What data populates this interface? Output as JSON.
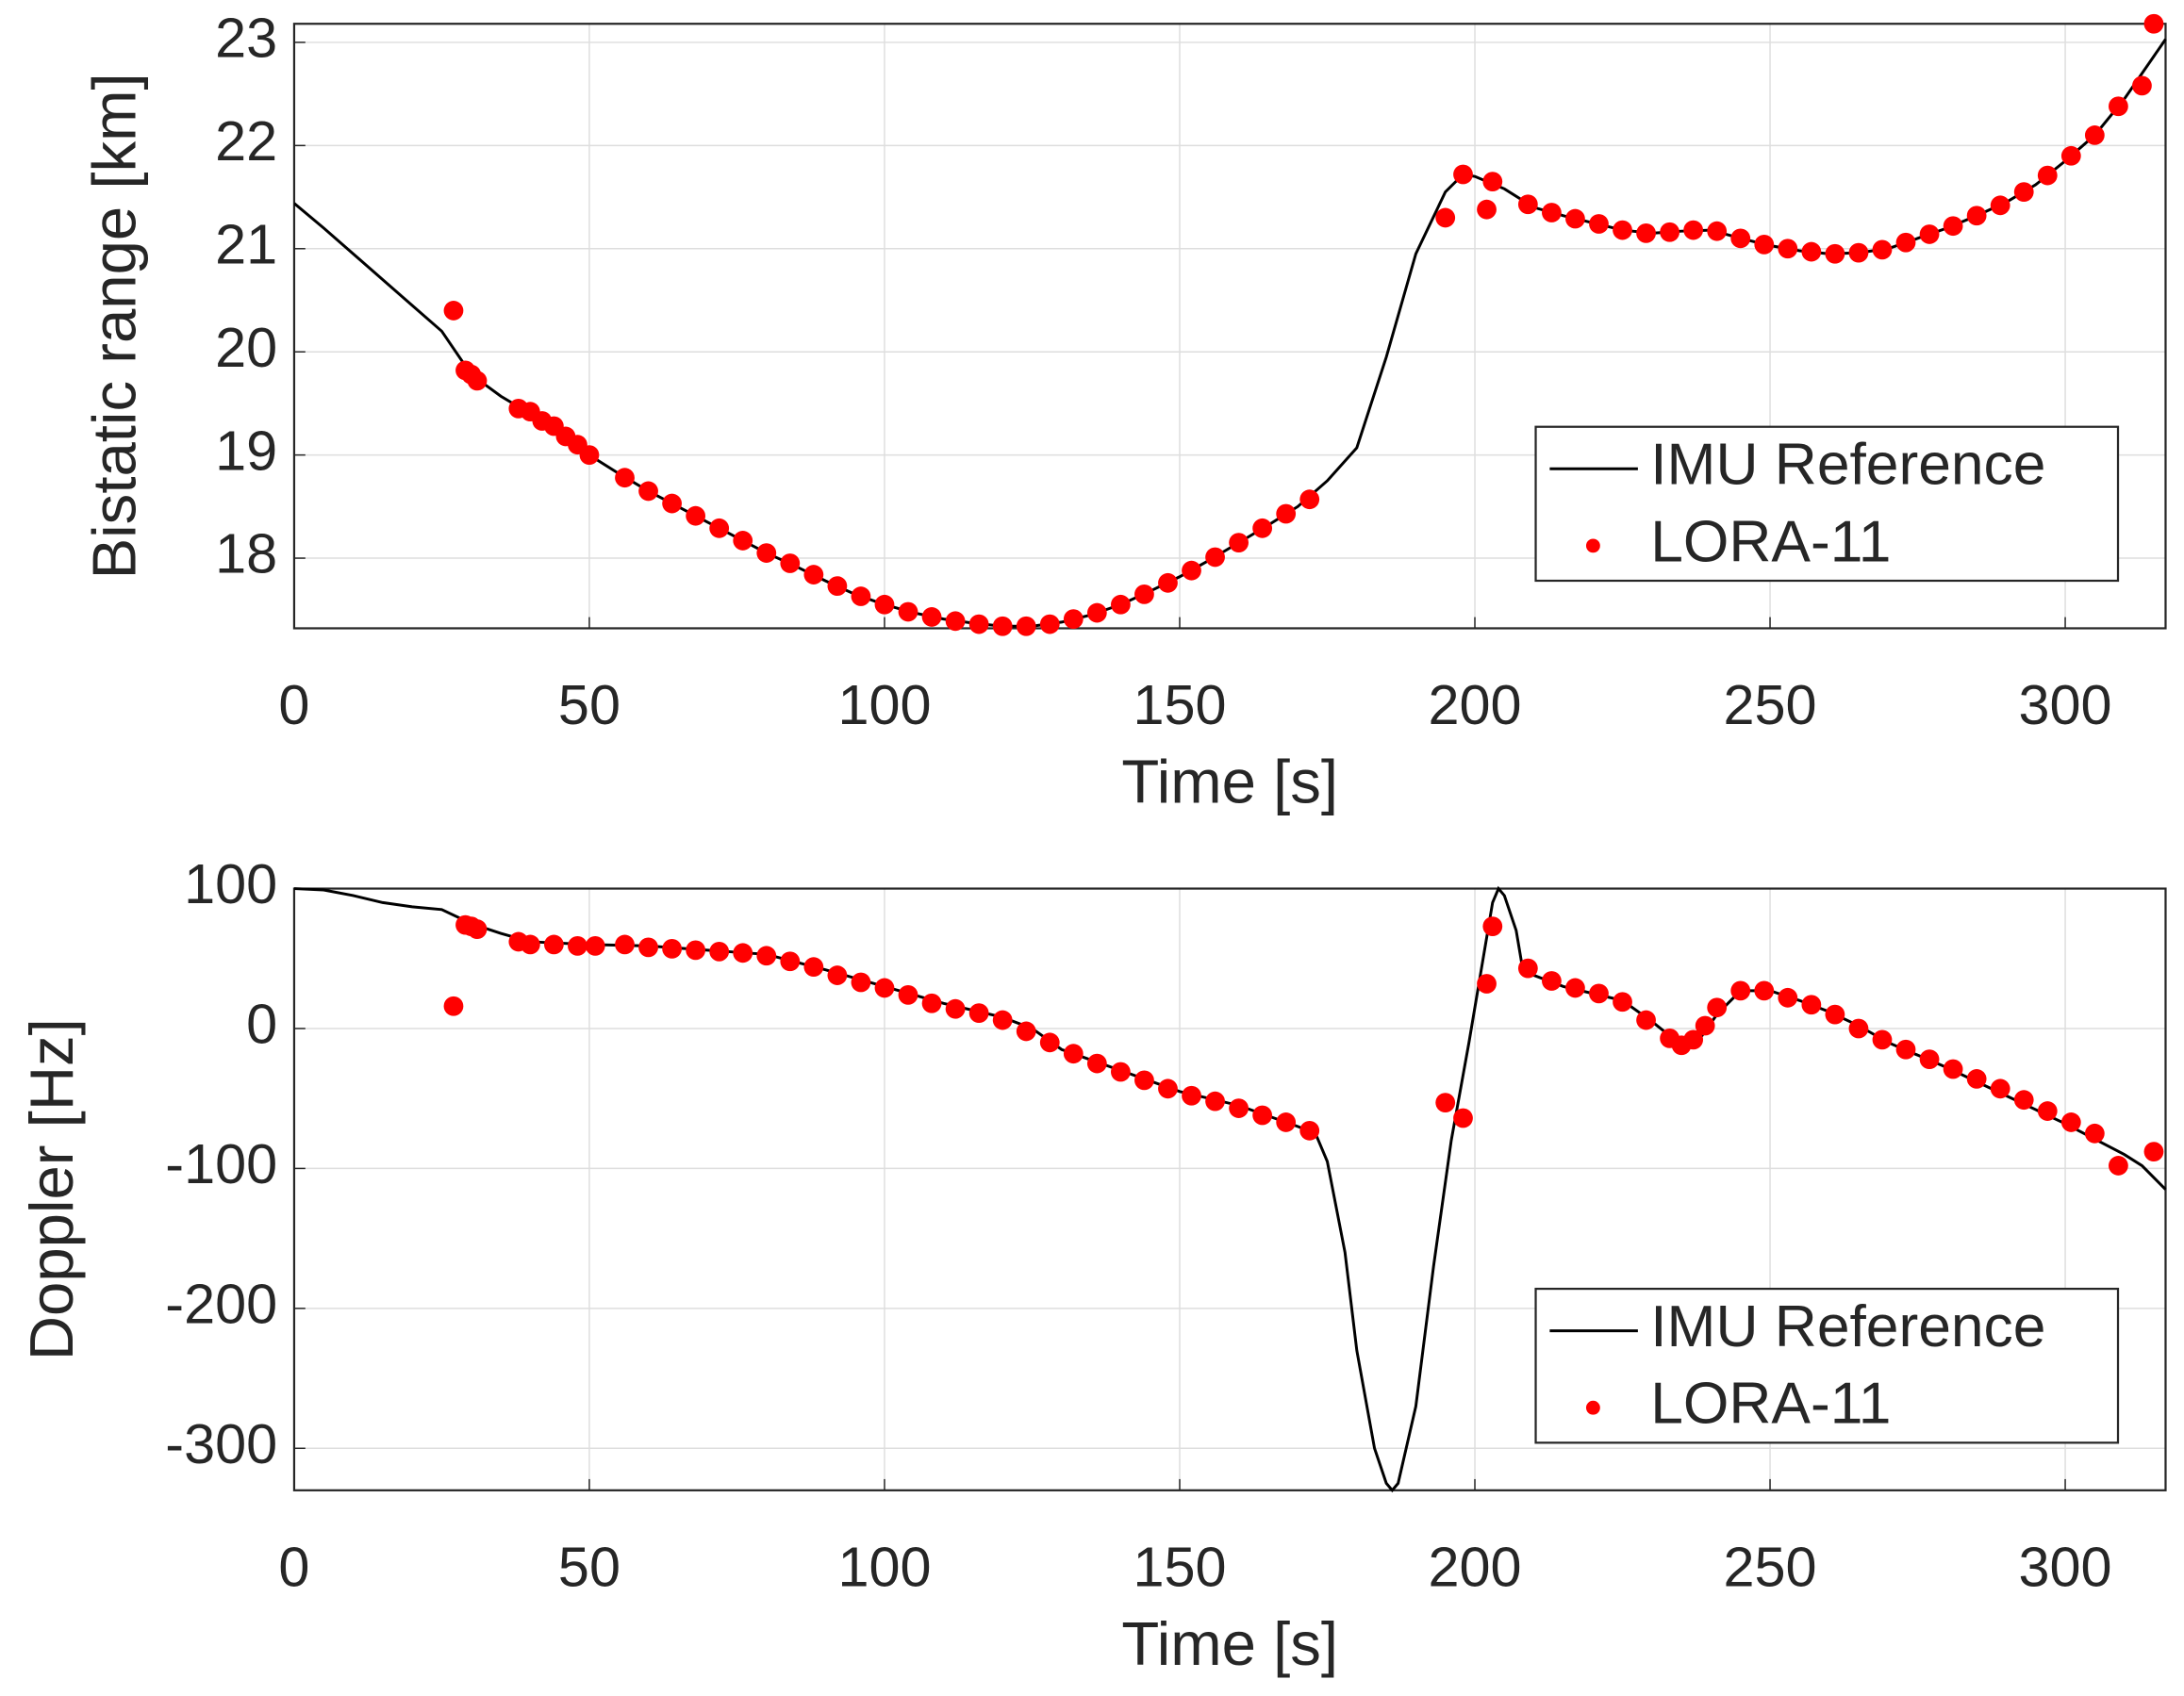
{
  "chart_data": [
    {
      "type": "line",
      "xlabel": "Time [s]",
      "ylabel": "Bistatic range [km]",
      "xlim": [
        0,
        317
      ],
      "ylim": [
        17.32,
        23.18
      ],
      "xticks": [
        0,
        50,
        100,
        150,
        200,
        250,
        300
      ],
      "yticks": [
        18,
        19,
        20,
        21,
        22,
        23
      ],
      "grid": true,
      "legend": "lower right",
      "series": [
        {
          "name": "IMU Reference",
          "type": "line",
          "color": "#000000",
          "x": [
            0,
            5,
            10,
            15,
            20,
            25,
            30,
            35,
            40,
            45,
            50,
            55,
            60,
            65,
            70,
            75,
            80,
            85,
            90,
            95,
            100,
            105,
            110,
            115,
            120,
            125,
            130,
            135,
            140,
            145,
            150,
            155,
            160,
            165,
            170,
            175,
            180,
            185,
            190,
            195,
            198,
            200,
            205,
            210,
            215,
            220,
            225,
            230,
            235,
            240,
            245,
            250,
            255,
            260,
            265,
            270,
            275,
            280,
            285,
            290,
            295,
            300,
            305,
            310,
            317
          ],
          "values": [
            21.44,
            21.2,
            20.95,
            20.7,
            20.45,
            20.2,
            19.78,
            19.57,
            19.4,
            19.2,
            19.0,
            18.82,
            18.65,
            18.5,
            18.35,
            18.2,
            18.05,
            17.92,
            17.78,
            17.65,
            17.55,
            17.47,
            17.41,
            17.37,
            17.34,
            17.34,
            17.38,
            17.45,
            17.55,
            17.68,
            17.82,
            17.98,
            18.15,
            18.32,
            18.5,
            18.75,
            19.07,
            19.95,
            20.95,
            21.55,
            21.72,
            21.7,
            21.58,
            21.4,
            21.32,
            21.25,
            21.18,
            21.15,
            21.17,
            21.18,
            21.1,
            21.03,
            20.98,
            20.95,
            20.96,
            21.0,
            21.1,
            21.2,
            21.32,
            21.45,
            21.62,
            21.85,
            22.1,
            22.45,
            23.03
          ]
        },
        {
          "name": "LORA-11",
          "type": "scatter",
          "color": "#ff0000",
          "x": [
            27,
            29,
            30,
            31,
            38,
            40,
            42,
            44,
            46,
            48,
            50,
            56,
            60,
            64,
            68,
            72,
            76,
            80,
            84,
            88,
            92,
            96,
            100,
            104,
            108,
            112,
            116,
            120,
            124,
            128,
            132,
            136,
            140,
            144,
            148,
            152,
            156,
            160,
            164,
            168,
            172,
            195,
            198,
            202,
            203,
            209,
            213,
            217,
            221,
            225,
            229,
            233,
            237,
            241,
            245,
            249,
            253,
            257,
            261,
            265,
            269,
            273,
            277,
            281,
            285,
            289,
            293,
            297,
            301,
            305,
            309,
            313,
            315
          ],
          "values": [
            20.4,
            19.82,
            19.78,
            19.72,
            19.45,
            19.42,
            19.33,
            19.28,
            19.18,
            19.1,
            19.0,
            18.78,
            18.65,
            18.53,
            18.41,
            18.29,
            18.17,
            18.05,
            17.95,
            17.84,
            17.73,
            17.63,
            17.55,
            17.48,
            17.43,
            17.39,
            17.36,
            17.34,
            17.34,
            17.36,
            17.41,
            17.47,
            17.55,
            17.65,
            17.76,
            17.88,
            18.01,
            18.15,
            18.29,
            18.43,
            18.57,
            21.3,
            21.72,
            21.38,
            21.65,
            21.43,
            21.35,
            21.29,
            21.24,
            21.18,
            21.15,
            21.16,
            21.18,
            21.17,
            21.1,
            21.04,
            21.0,
            20.97,
            20.95,
            20.96,
            20.99,
            21.06,
            21.14,
            21.22,
            21.32,
            21.42,
            21.55,
            21.71,
            21.9,
            22.1,
            22.38,
            22.58,
            23.18
          ]
        }
      ]
    },
    {
      "type": "line",
      "xlabel": "Time [s]",
      "ylabel": "Doppler [Hz]",
      "xlim": [
        0,
        317
      ],
      "ylim": [
        -330,
        100
      ],
      "xticks": [
        0,
        50,
        100,
        150,
        200,
        250,
        300
      ],
      "yticks": [
        -300,
        -200,
        -100,
        0,
        100
      ],
      "grid": true,
      "legend": "lower right",
      "series": [
        {
          "name": "IMU Reference",
          "type": "line",
          "color": "#000000",
          "x": [
            0,
            5,
            10,
            15,
            20,
            25,
            30,
            35,
            40,
            50,
            60,
            70,
            80,
            90,
            100,
            110,
            120,
            125,
            130,
            140,
            150,
            160,
            170,
            173,
            175,
            178,
            180,
            183,
            185,
            186,
            187,
            190,
            193,
            196,
            199,
            201,
            203,
            204,
            205,
            207,
            208,
            210,
            215,
            220,
            225,
            230,
            235,
            238,
            241,
            245,
            250,
            255,
            260,
            265,
            270,
            280,
            290,
            300,
            310,
            313,
            317
          ],
          "values": [
            100,
            99,
            95,
            90,
            87,
            85,
            75,
            68,
            62,
            60,
            59,
            56,
            53,
            42,
            30,
            18,
            8,
            0,
            -15,
            -30,
            -45,
            -55,
            -70,
            -75,
            -95,
            -160,
            -230,
            -300,
            -325,
            -330,
            -325,
            -270,
            -170,
            -80,
            -10,
            40,
            90,
            100,
            95,
            70,
            45,
            38,
            30,
            25,
            20,
            5,
            -12,
            -8,
            10,
            27,
            27,
            20,
            12,
            2,
            -10,
            -28,
            -48,
            -68,
            -90,
            -98,
            -115
          ]
        },
        {
          "name": "LORA-11",
          "type": "scatter",
          "color": "#ff0000",
          "x": [
            27,
            29,
            30,
            31,
            38,
            40,
            44,
            48,
            51,
            56,
            60,
            64,
            68,
            72,
            76,
            80,
            84,
            88,
            92,
            96,
            100,
            104,
            108,
            112,
            116,
            120,
            124,
            128,
            132,
            136,
            140,
            144,
            148,
            152,
            156,
            160,
            164,
            168,
            172,
            195,
            198,
            202,
            203,
            209,
            213,
            217,
            221,
            225,
            229,
            233,
            235,
            237,
            239,
            241,
            245,
            249,
            253,
            257,
            261,
            265,
            269,
            273,
            277,
            281,
            285,
            289,
            293,
            297,
            301,
            305,
            309,
            315
          ],
          "values": [
            16,
            74,
            73,
            71,
            62,
            60,
            60,
            59,
            59,
            60,
            58,
            57,
            56,
            55,
            54,
            52,
            48,
            44,
            38,
            33,
            29,
            24,
            18,
            14,
            11,
            6,
            -2,
            -10,
            -18,
            -25,
            -31,
            -37,
            -43,
            -48,
            -52,
            -57,
            -62,
            -67,
            -73,
            -53,
            -64,
            32,
            73,
            43,
            34,
            29,
            25,
            19,
            6,
            -7,
            -12,
            -8,
            2,
            15,
            27,
            27,
            22,
            17,
            10,
            0,
            -8,
            -15,
            -22,
            -29,
            -36,
            -43,
            -51,
            -59,
            -67,
            -75,
            -98,
            -88
          ]
        }
      ]
    }
  ]
}
